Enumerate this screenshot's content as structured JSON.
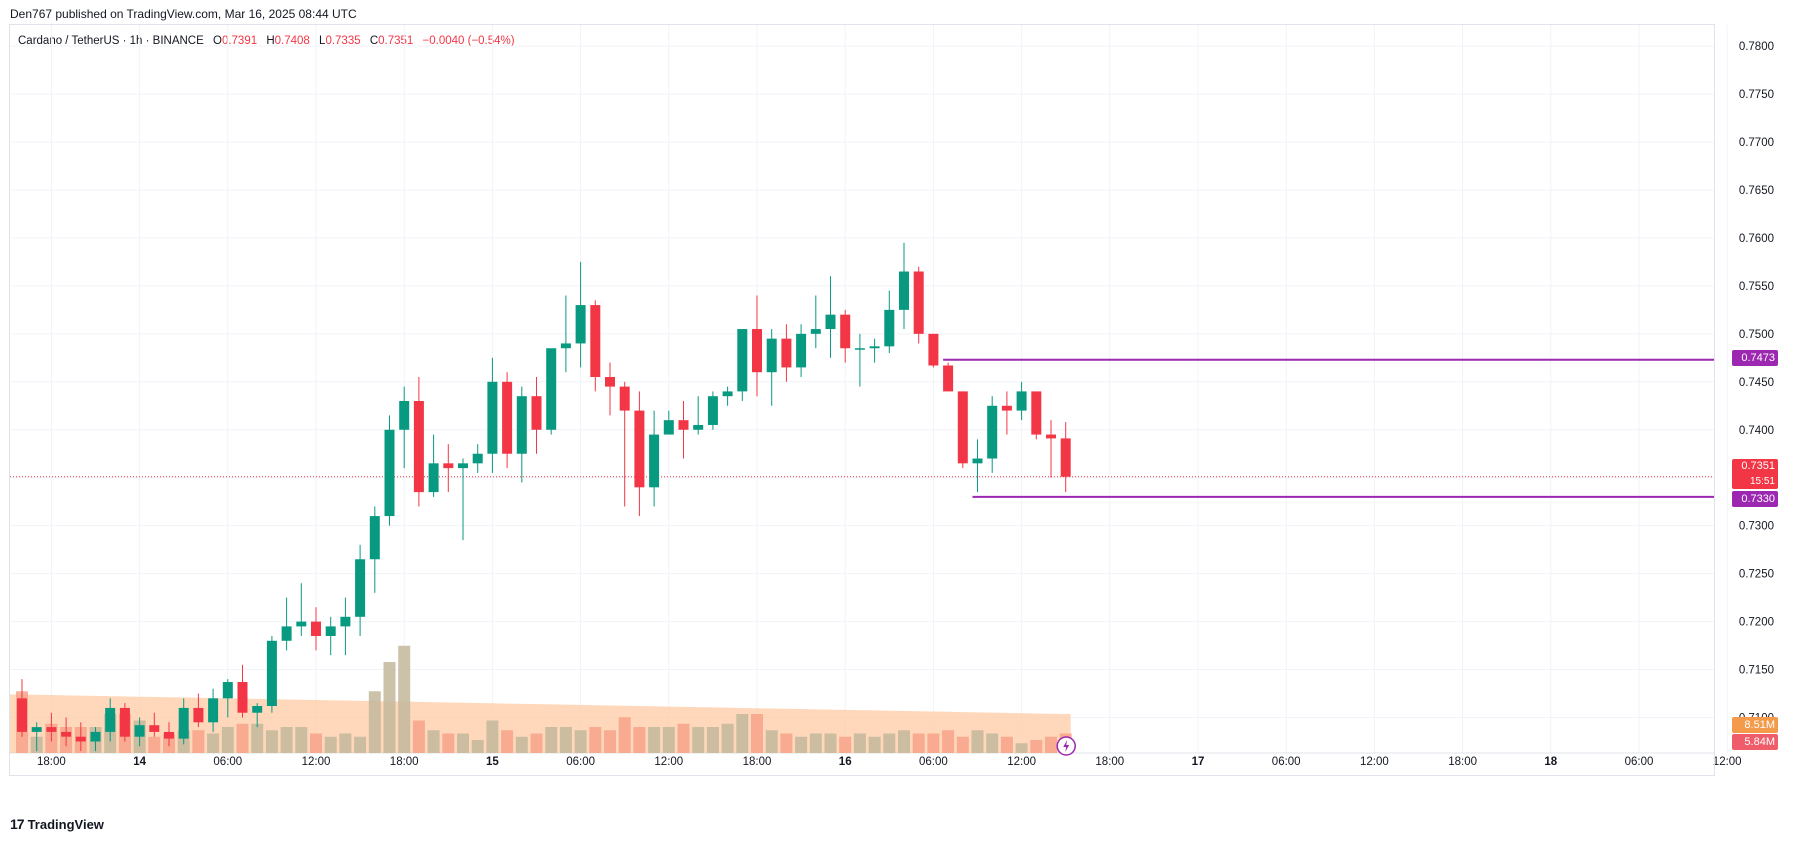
{
  "header": {
    "published": "Den767 published on TradingView.com, Mar 16, 2025 08:44 UTC"
  },
  "legend": {
    "symbol": "Cardano / TetherUS · 1h · BINANCE",
    "open_label": "O",
    "open": "0.7391",
    "high_label": "H",
    "high": "0.7408",
    "low_label": "L",
    "low": "0.7335",
    "close_label": "C",
    "close": "0.7351",
    "change": "−0.0040 (−0.54%)"
  },
  "price_tags": {
    "resistance": "0.7473",
    "current_price": "0.7351",
    "countdown": "15:51",
    "support": "0.7330",
    "volume_ma": "8.51M",
    "volume": "5.84M"
  },
  "footer": {
    "brand": "TradingView",
    "logo": "17"
  },
  "colors": {
    "up": "#089981",
    "down": "#f23645",
    "level": "#9c27b0",
    "volume_ma": "#ffcba4",
    "vol_up": "#c3b79b",
    "vol_down": "#f7a38a"
  },
  "chart_data": {
    "type": "candlestick",
    "symbol": "ADA/USDT",
    "interval": "1h",
    "ylim": [
      0.7063,
      0.7822
    ],
    "y_ticks": [
      "0.7800",
      "0.7750",
      "0.7700",
      "0.7650",
      "0.7600",
      "0.7550",
      "0.7500",
      "0.7450",
      "0.7400",
      "0.7350",
      "0.7300",
      "0.7250",
      "0.7200",
      "0.7150",
      "0.7100"
    ],
    "y_tick_values": [
      0.78,
      0.775,
      0.77,
      0.765,
      0.76,
      0.755,
      0.75,
      0.745,
      0.74,
      0.735,
      0.73,
      0.725,
      0.72,
      0.715,
      0.71
    ],
    "x_ticks": [
      {
        "label": "18:00",
        "bar": 2,
        "bold": false
      },
      {
        "label": "14",
        "bar": 8,
        "bold": true
      },
      {
        "label": "06:00",
        "bar": 14,
        "bold": false
      },
      {
        "label": "12:00",
        "bar": 20,
        "bold": false
      },
      {
        "label": "18:00",
        "bar": 26,
        "bold": false
      },
      {
        "label": "15",
        "bar": 32,
        "bold": true
      },
      {
        "label": "06:00",
        "bar": 38,
        "bold": false
      },
      {
        "label": "12:00",
        "bar": 44,
        "bold": false
      },
      {
        "label": "18:00",
        "bar": 50,
        "bold": false
      },
      {
        "label": "16",
        "bar": 56,
        "bold": true
      },
      {
        "label": "06:00",
        "bar": 62,
        "bold": false
      },
      {
        "label": "12:00",
        "bar": 68,
        "bold": false
      },
      {
        "label": "18:00",
        "bar": 74,
        "bold": false
      },
      {
        "label": "17",
        "bar": 80,
        "bold": true
      },
      {
        "label": "06:00",
        "bar": 86,
        "bold": false
      },
      {
        "label": "12:00",
        "bar": 92,
        "bold": false
      },
      {
        "label": "18:00",
        "bar": 98,
        "bold": false
      },
      {
        "label": "18",
        "bar": 104,
        "bold": true
      },
      {
        "label": "06:00",
        "bar": 110,
        "bold": false
      },
      {
        "label": "12:00",
        "bar": 116,
        "bold": false
      }
    ],
    "bars_per_hour_spacing_note": "bar index 0 = first visible candle",
    "candles": [
      [
        0.712,
        0.714,
        0.708,
        0.7085
      ],
      [
        0.7085,
        0.7095,
        0.7065,
        0.709
      ],
      [
        0.709,
        0.7105,
        0.7075,
        0.7085
      ],
      [
        0.7085,
        0.71,
        0.707,
        0.708
      ],
      [
        0.708,
        0.7095,
        0.7065,
        0.7075
      ],
      [
        0.7075,
        0.709,
        0.7065,
        0.7085
      ],
      [
        0.7085,
        0.712,
        0.7075,
        0.711
      ],
      [
        0.711,
        0.7115,
        0.7075,
        0.708
      ],
      [
        0.708,
        0.71,
        0.707,
        0.7092
      ],
      [
        0.7092,
        0.7105,
        0.708,
        0.7085
      ],
      [
        0.7085,
        0.7095,
        0.707,
        0.7078
      ],
      [
        0.7078,
        0.712,
        0.7072,
        0.711
      ],
      [
        0.711,
        0.7125,
        0.709,
        0.7095
      ],
      [
        0.7095,
        0.713,
        0.7085,
        0.712
      ],
      [
        0.712,
        0.714,
        0.71,
        0.7137
      ],
      [
        0.7137,
        0.7155,
        0.71,
        0.7105
      ],
      [
        0.7105,
        0.7115,
        0.709,
        0.7112
      ],
      [
        0.7112,
        0.7185,
        0.7105,
        0.718
      ],
      [
        0.718,
        0.7225,
        0.717,
        0.7195
      ],
      [
        0.7195,
        0.724,
        0.7185,
        0.72
      ],
      [
        0.72,
        0.7215,
        0.717,
        0.7185
      ],
      [
        0.7185,
        0.7205,
        0.7165,
        0.7195
      ],
      [
        0.7195,
        0.7225,
        0.7165,
        0.7205
      ],
      [
        0.7205,
        0.728,
        0.7185,
        0.7265
      ],
      [
        0.7265,
        0.732,
        0.723,
        0.731
      ],
      [
        0.731,
        0.7415,
        0.73,
        0.74
      ],
      [
        0.74,
        0.7445,
        0.736,
        0.743
      ],
      [
        0.743,
        0.7455,
        0.732,
        0.7335
      ],
      [
        0.7335,
        0.7395,
        0.733,
        0.7365
      ],
      [
        0.7365,
        0.7385,
        0.7335,
        0.736
      ],
      [
        0.736,
        0.737,
        0.7285,
        0.7365
      ],
      [
        0.7365,
        0.7385,
        0.7355,
        0.7375
      ],
      [
        0.7375,
        0.7475,
        0.7355,
        0.745
      ],
      [
        0.745,
        0.746,
        0.736,
        0.7375
      ],
      [
        0.7375,
        0.7445,
        0.7345,
        0.7435
      ],
      [
        0.7435,
        0.7455,
        0.7375,
        0.74
      ],
      [
        0.74,
        0.748,
        0.7395,
        0.7485
      ],
      [
        0.7485,
        0.754,
        0.746,
        0.749
      ],
      [
        0.749,
        0.7575,
        0.7465,
        0.753
      ],
      [
        0.753,
        0.7535,
        0.744,
        0.7455
      ],
      [
        0.7455,
        0.747,
        0.7415,
        0.7445
      ],
      [
        0.7445,
        0.745,
        0.732,
        0.742
      ],
      [
        0.742,
        0.744,
        0.731,
        0.734
      ],
      [
        0.734,
        0.742,
        0.732,
        0.7395
      ],
      [
        0.7395,
        0.742,
        0.7395,
        0.741
      ],
      [
        0.741,
        0.743,
        0.737,
        0.74
      ],
      [
        0.74,
        0.7435,
        0.7395,
        0.7405
      ],
      [
        0.7405,
        0.744,
        0.74,
        0.7435
      ],
      [
        0.7435,
        0.7445,
        0.7425,
        0.744
      ],
      [
        0.744,
        0.7505,
        0.743,
        0.7505
      ],
      [
        0.7505,
        0.754,
        0.7435,
        0.746
      ],
      [
        0.746,
        0.7505,
        0.7425,
        0.7495
      ],
      [
        0.7495,
        0.751,
        0.745,
        0.7465
      ],
      [
        0.7465,
        0.751,
        0.7455,
        0.75
      ],
      [
        0.75,
        0.754,
        0.7485,
        0.7505
      ],
      [
        0.7505,
        0.756,
        0.7475,
        0.752
      ],
      [
        0.752,
        0.7525,
        0.747,
        0.7485
      ],
      [
        0.7485,
        0.75,
        0.7445,
        0.7485
      ],
      [
        0.7485,
        0.7495,
        0.747,
        0.7487
      ],
      [
        0.7487,
        0.7545,
        0.748,
        0.7525
      ],
      [
        0.7525,
        0.7595,
        0.7505,
        0.7565
      ],
      [
        0.7565,
        0.757,
        0.749,
        0.75
      ],
      [
        0.75,
        0.75,
        0.7465,
        0.7467
      ],
      [
        0.7467,
        0.747,
        0.744,
        0.744
      ],
      [
        0.744,
        0.744,
        0.736,
        0.7365
      ],
      [
        0.7365,
        0.739,
        0.7335,
        0.737
      ],
      [
        0.737,
        0.7435,
        0.7355,
        0.7425
      ],
      [
        0.7425,
        0.744,
        0.7395,
        0.742
      ],
      [
        0.742,
        0.745,
        0.741,
        0.744
      ],
      [
        0.744,
        0.744,
        0.739,
        0.7395
      ],
      [
        0.7395,
        0.741,
        0.735,
        0.7391
      ],
      [
        0.7391,
        0.7408,
        0.7335,
        0.7351
      ]
    ],
    "volume": [
      1.9,
      0.5,
      0.9,
      0.8,
      0.8,
      0.8,
      1.2,
      1.2,
      1.0,
      0.5,
      0.6,
      0.7,
      0.7,
      0.6,
      0.8,
      0.9,
      0.9,
      0.7,
      0.8,
      0.8,
      0.6,
      0.5,
      0.6,
      0.5,
      1.9,
      2.8,
      3.3,
      1.0,
      0.7,
      0.6,
      0.6,
      0.4,
      1.0,
      0.7,
      0.5,
      0.6,
      0.8,
      0.8,
      0.7,
      0.8,
      0.7,
      1.1,
      0.8,
      0.8,
      0.8,
      0.9,
      0.8,
      0.8,
      0.9,
      1.2,
      1.2,
      0.7,
      0.6,
      0.5,
      0.6,
      0.6,
      0.5,
      0.6,
      0.5,
      0.6,
      0.7,
      0.6,
      0.6,
      0.7,
      0.5,
      0.7,
      0.6,
      0.5,
      0.3,
      0.4,
      0.5,
      0.6
    ],
    "volume_scale_max": 4.0,
    "volume_ma_start": 1.8,
    "volume_ma_end": 1.2,
    "levels": [
      {
        "name": "resistance",
        "value": 0.7473,
        "from_bar": 63
      },
      {
        "name": "support",
        "value": 0.733,
        "from_bar": 65
      }
    ],
    "current_price": 0.7351
  }
}
